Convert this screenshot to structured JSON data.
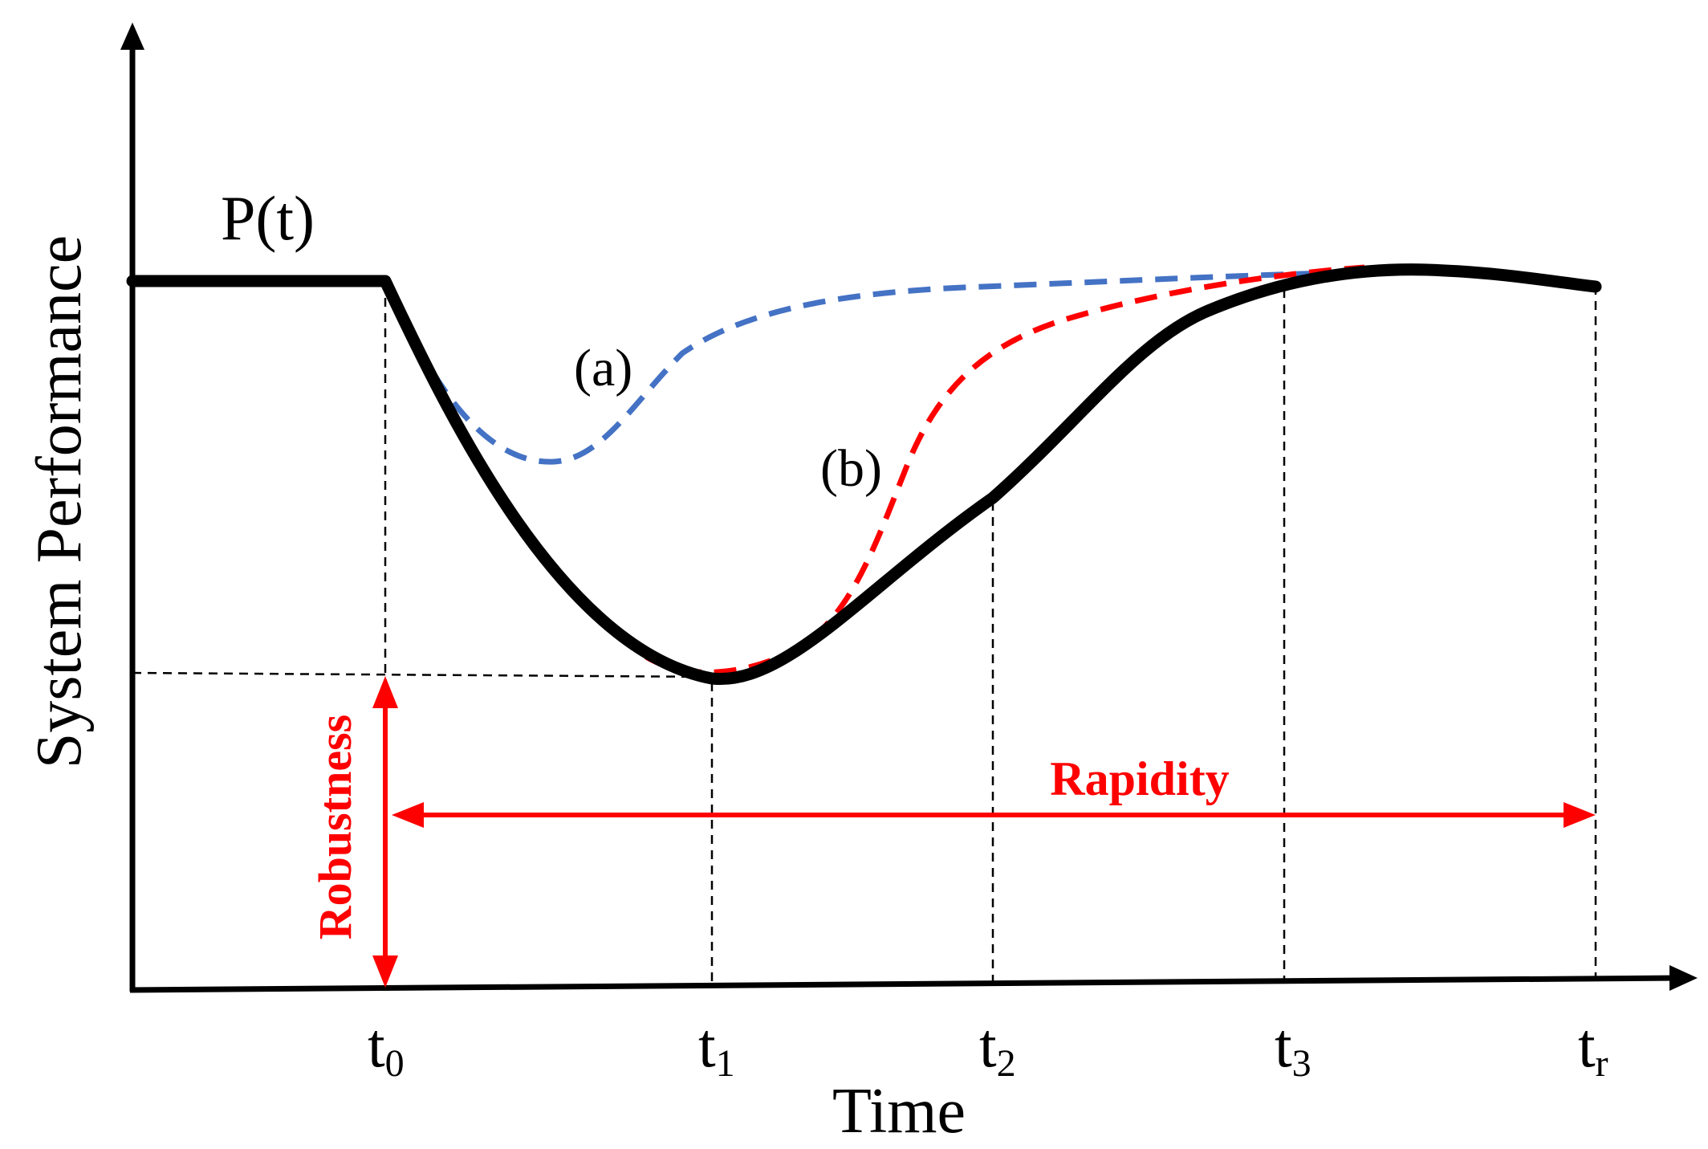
{
  "diagram": {
    "y_axis_label": "System Performance",
    "x_axis_label": "Time",
    "curve_label": "P(t)",
    "curve_a_label": "(a)",
    "curve_b_label": "(b)",
    "robustness_label": "Robustness",
    "rapidity_label": "Rapidity",
    "ticks": [
      {
        "main": "t",
        "sub": "0"
      },
      {
        "main": "t",
        "sub": "1"
      },
      {
        "main": "t",
        "sub": "2"
      },
      {
        "main": "t",
        "sub": "3"
      },
      {
        "main": "t",
        "sub": "r"
      }
    ],
    "colors": {
      "main_curve": "#000000",
      "curve_a": "#4472C4",
      "curve_b": "#FF0000",
      "annotation": "#FF0000"
    }
  }
}
